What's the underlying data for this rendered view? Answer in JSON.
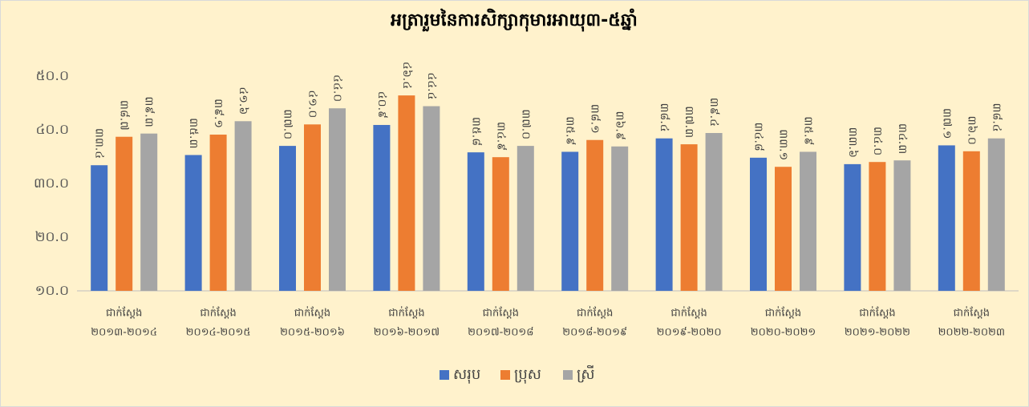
{
  "chart_data": {
    "type": "bar",
    "title": "អត្រារួមនៃការសិក្សាកុមារអាយុ៣-៥ឆ្នាំ",
    "categories": [
      [
        "ជាក់ស្តែង",
        "២០១៣-២០១៤"
      ],
      [
        "ជាក់ស្តែង",
        "២០១៤-២០១៥"
      ],
      [
        "ជាក់ស្តែង",
        "២០១៥-២០១៦"
      ],
      [
        "ជាក់ស្តែង",
        "២០១៦-២០១៧"
      ],
      [
        "ជាក់ស្តែង",
        "២០១៧-២០១៨"
      ],
      [
        "ជាក់ស្តែង",
        "២០១៨-២០១៩"
      ],
      [
        "ជាក់ស្តែង",
        "២០១៩-២០២០"
      ],
      [
        "ជាក់ស្តែង",
        "២០២០-២០២១"
      ],
      [
        "ជាក់ស្តែង",
        "២០២១-២០២២"
      ],
      [
        "ជាក់ស្តែង",
        "២០២២-២០២៣"
      ]
    ],
    "series": [
      {
        "name": "សរុប",
        "color": "#4472c4",
        "values": [
          33.4,
          35.3,
          37.0,
          40.9,
          35.8,
          35.9,
          38.4,
          34.8,
          33.6,
          37.1
        ],
        "value_labels": [
          "៣៣.៤",
          "៣៥.៣",
          "៣៧.០",
          "៤០.៩",
          "៣៥.៨",
          "៣៥.៩",
          "៣៨.៤",
          "៣៤.៨",
          "៣៣.៦",
          "៣៧.១"
        ]
      },
      {
        "name": "ប្រុស",
        "color": "#ed7d31",
        "values": [
          38.7,
          39.1,
          41.0,
          46.4,
          34.9,
          38.1,
          37.3,
          33.1,
          34.0,
          36.0
        ],
        "value_labels": [
          "៣៨.៧",
          "៣៩.១",
          "៤១.០",
          "៤៦.៤",
          "៣៤.៩",
          "៣៨.១",
          "៣៧.៣",
          "៣៣.១",
          "៣៤.០",
          "៣៦.០"
        ]
      },
      {
        "name": "ស្រី",
        "color": "#a5a5a5",
        "values": [
          39.3,
          41.6,
          44.0,
          44.4,
          37.0,
          36.9,
          39.4,
          35.9,
          34.3,
          38.4
        ],
        "value_labels": [
          "៣៩.៣",
          "៤១.៦",
          "៤៤.០",
          "៤៤.៤",
          "៣៧.០",
          "៣៦.៩",
          "៣៩.៤",
          "៣៥.៩",
          "៣៤.៣",
          "៣៨.៤"
        ]
      }
    ],
    "ylim": [
      10,
      50
    ],
    "yticks": [
      {
        "value": 10,
        "label": "១០.០"
      },
      {
        "value": 20,
        "label": "២០.០"
      },
      {
        "value": 30,
        "label": "៣០.០"
      },
      {
        "value": 40,
        "label": "៤០.០"
      },
      {
        "value": 50,
        "label": "៥០.០"
      }
    ],
    "grid": false,
    "legend": "bottom"
  }
}
